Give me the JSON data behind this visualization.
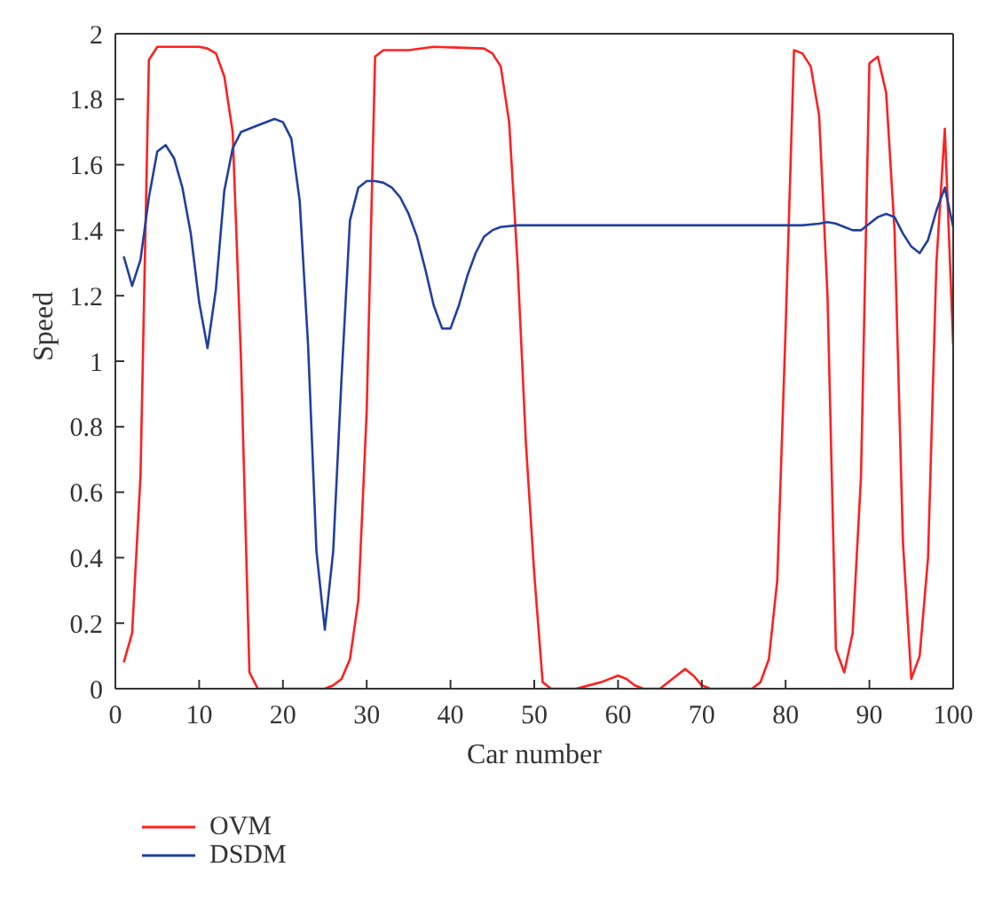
{
  "chart_data": {
    "type": "line",
    "xlabel": "Car number",
    "ylabel": "Speed",
    "xlim": [
      0,
      100
    ],
    "xticks": [
      0,
      10,
      20,
      30,
      40,
      50,
      60,
      70,
      80,
      90,
      100
    ],
    "ylim": [
      0,
      2
    ],
    "yticks": [
      0,
      0.2,
      0.4,
      0.6,
      0.8,
      1,
      1.2,
      1.4,
      1.6,
      1.8,
      2
    ],
    "grid": false,
    "legend": "bottom left",
    "marker": "none",
    "line_style": "solid",
    "series": [
      {
        "name": "OVM",
        "color": "#ff2020",
        "x": [
          1,
          2,
          3,
          4,
          5,
          10,
          11,
          12,
          13,
          14,
          15,
          16,
          17,
          25,
          26,
          27,
          28,
          29,
          30,
          31,
          32,
          35,
          38,
          44,
          45,
          46,
          47,
          48,
          49,
          50,
          51,
          52,
          55,
          58,
          60,
          61,
          62,
          63,
          65,
          67,
          68,
          69,
          70,
          71,
          76,
          77,
          78,
          79,
          80,
          81,
          82,
          83,
          84,
          85,
          86,
          87,
          88,
          89,
          90,
          91,
          92,
          93,
          94,
          95,
          96,
          97,
          98,
          99,
          100
        ],
        "values": [
          0.08,
          0.17,
          0.65,
          1.92,
          1.96,
          1.96,
          1.955,
          1.94,
          1.87,
          1.7,
          1.0,
          0.05,
          0.0,
          0.0,
          0.01,
          0.03,
          0.09,
          0.27,
          0.85,
          1.93,
          1.95,
          1.95,
          1.96,
          1.955,
          1.94,
          1.9,
          1.73,
          1.3,
          0.75,
          0.35,
          0.02,
          0.0,
          0.0,
          0.02,
          0.04,
          0.03,
          0.01,
          0.0,
          0.0,
          0.04,
          0.06,
          0.04,
          0.01,
          0.0,
          0.0,
          0.02,
          0.09,
          0.33,
          1.1,
          1.95,
          1.94,
          1.9,
          1.75,
          1.2,
          0.12,
          0.05,
          0.17,
          0.65,
          1.91,
          1.93,
          1.82,
          1.4,
          0.45,
          0.03,
          0.1,
          0.4,
          1.3,
          1.71,
          1.05
        ]
      },
      {
        "name": "DSDM",
        "color": "#2040a0",
        "x": [
          1,
          2,
          3,
          4,
          5,
          6,
          7,
          8,
          9,
          10,
          11,
          12,
          13,
          14,
          15,
          17,
          19,
          20,
          21,
          22,
          23,
          24,
          25,
          26,
          27,
          28,
          29,
          30,
          31,
          32,
          33,
          34,
          35,
          36,
          37,
          38,
          39,
          40,
          41,
          42,
          43,
          44,
          45,
          46,
          48,
          80,
          82,
          84,
          85,
          86,
          87,
          88,
          89,
          90,
          91,
          92,
          93,
          94,
          95,
          96,
          97,
          98,
          99,
          100
        ],
        "values": [
          1.32,
          1.23,
          1.31,
          1.5,
          1.64,
          1.66,
          1.62,
          1.53,
          1.39,
          1.18,
          1.04,
          1.22,
          1.52,
          1.65,
          1.7,
          1.72,
          1.74,
          1.73,
          1.68,
          1.49,
          1.05,
          0.42,
          0.18,
          0.42,
          0.95,
          1.43,
          1.53,
          1.55,
          1.55,
          1.545,
          1.53,
          1.5,
          1.45,
          1.38,
          1.28,
          1.17,
          1.1,
          1.1,
          1.17,
          1.26,
          1.33,
          1.38,
          1.4,
          1.41,
          1.415,
          1.415,
          1.415,
          1.42,
          1.425,
          1.42,
          1.41,
          1.4,
          1.4,
          1.42,
          1.44,
          1.45,
          1.44,
          1.39,
          1.35,
          1.33,
          1.37,
          1.46,
          1.53,
          1.41
        ]
      }
    ]
  }
}
